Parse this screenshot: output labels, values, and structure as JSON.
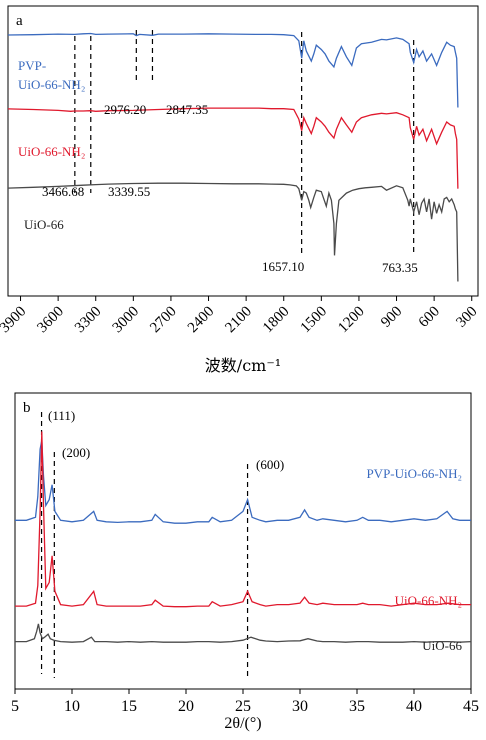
{
  "chart_data": [
    {
      "panel": "a",
      "type": "line",
      "xlabel": "波数/cm⁻¹",
      "x_reversed": true,
      "xlim": [
        4000,
        250
      ],
      "xticks": [
        3900,
        3600,
        3300,
        3000,
        2700,
        2400,
        2100,
        1800,
        1500,
        1200,
        900,
        600,
        300
      ],
      "xtick_labels": [
        "3900",
        "3600",
        "3300",
        "3000",
        "2700",
        "2400",
        "2100",
        "1800",
        "1500",
        "1200",
        "900",
        "600",
        "300"
      ],
      "series": [
        {
          "name": "PVP-\nUiO-66-NH₂",
          "color": "#3b6bbf",
          "x": [
            4000,
            3800,
            3600,
            3470,
            3400,
            3340,
            3300,
            3200,
            3000,
            2976,
            2950,
            2847,
            2800,
            2600,
            2400,
            2200,
            2000,
            1900,
            1800,
            1720,
            1680,
            1657,
            1640,
            1620,
            1580,
            1560,
            1540,
            1500,
            1470,
            1440,
            1400,
            1380,
            1340,
            1300,
            1257,
            1220,
            1180,
            1100,
            1020,
            980,
            900,
            850,
            800,
            790,
            763,
            740,
            720,
            690,
            660,
            620,
            580,
            540,
            500,
            470,
            440,
            430,
            420,
            410
          ],
          "y": [
            90.0,
            90.1,
            90.3,
            90.2,
            90.4,
            90.5,
            90.2,
            90.3,
            90.4,
            89.8,
            90.2,
            89.9,
            90.3,
            90.3,
            90.4,
            90.3,
            90.2,
            90.2,
            90.1,
            89.8,
            88.0,
            82.0,
            88.0,
            84.5,
            81.0,
            83.5,
            86.5,
            85.0,
            83.5,
            81.0,
            79.0,
            82.0,
            86.0,
            82.5,
            79.5,
            85.5,
            87.0,
            87.5,
            88.5,
            88.3,
            89.0,
            88.5,
            87.0,
            84.0,
            80.5,
            85.0,
            82.5,
            84.5,
            81.0,
            83.5,
            79.5,
            84.0,
            87.5,
            86.5,
            86.0,
            84.0,
            82.0,
            65.0
          ]
        },
        {
          "name": "UiO-66-NH₂",
          "color": "#e0192d",
          "x": [
            4000,
            3800,
            3600,
            3500,
            3470,
            3400,
            3340,
            3300,
            3200,
            3000,
            2800,
            2600,
            2400,
            2200,
            2000,
            1900,
            1800,
            1720,
            1680,
            1657,
            1640,
            1620,
            1580,
            1560,
            1540,
            1500,
            1470,
            1440,
            1400,
            1380,
            1340,
            1300,
            1257,
            1220,
            1180,
            1100,
            1020,
            980,
            900,
            850,
            800,
            790,
            763,
            740,
            720,
            690,
            660,
            620,
            580,
            540,
            500,
            470,
            440,
            430,
            420,
            410
          ],
          "y": [
            64.5,
            64.3,
            64.0,
            63.7,
            63.8,
            63.8,
            63.9,
            63.7,
            63.9,
            64.0,
            64.3,
            64.6,
            64.8,
            64.8,
            64.8,
            64.6,
            64.6,
            64.3,
            61.0,
            57.0,
            61.5,
            59.5,
            56.0,
            58.5,
            61.5,
            60.0,
            58.5,
            56.5,
            54.5,
            57.5,
            61.5,
            59.0,
            56.5,
            60.0,
            61.5,
            62.5,
            63.0,
            62.8,
            63.2,
            62.5,
            61.5,
            58.0,
            54.0,
            58.5,
            55.5,
            57.5,
            53.5,
            57.5,
            52.5,
            56.5,
            60.0,
            59.0,
            58.5,
            56.0,
            54.0,
            37.0
          ]
        },
        {
          "name": "UiO-66",
          "color": "#4a4a4a",
          "x": [
            4000,
            3800,
            3600,
            3500,
            3400,
            3300,
            3200,
            3000,
            2800,
            2600,
            2400,
            2200,
            2000,
            1900,
            1800,
            1750,
            1700,
            1680,
            1657,
            1640,
            1620,
            1600,
            1585,
            1560,
            1540,
            1500,
            1480,
            1460,
            1440,
            1420,
            1400,
            1395,
            1380,
            1360,
            1300,
            1250,
            1200,
            1150,
            1100,
            1020,
            980,
            900,
            850,
            810,
            800,
            790,
            763,
            740,
            720,
            700,
            680,
            660,
            640,
            620,
            600,
            580,
            560,
            540,
            520,
            500,
            480,
            460,
            440,
            430,
            420,
            410
          ],
          "y": [
            37.2,
            37.5,
            37.8,
            38.0,
            38.2,
            38.4,
            38.6,
            38.8,
            38.9,
            38.9,
            38.8,
            38.7,
            38.7,
            38.6,
            38.5,
            38.3,
            38.0,
            37.0,
            33.0,
            36.0,
            35.5,
            33.0,
            30.5,
            34.0,
            36.5,
            36.0,
            33.5,
            31.0,
            35.5,
            33.0,
            25.0,
            14.0,
            25.0,
            33.0,
            35.5,
            36.5,
            37.0,
            37.3,
            37.5,
            37.8,
            36.5,
            38.0,
            37.3,
            33.0,
            31.0,
            33.5,
            29.0,
            32.5,
            28.0,
            32.0,
            33.5,
            29.0,
            33.5,
            26.5,
            32.5,
            28.5,
            31.5,
            29.0,
            33.5,
            34.0,
            32.5,
            33.5,
            31.5,
            30.0,
            29.0,
            5.0
          ]
        }
      ],
      "reference_lines": [
        3466.68,
        3339.55,
        2976.2,
        2847.35,
        1657.1,
        763.35
      ],
      "annotations": [
        "3466.68",
        "3339.55",
        "2976.20",
        "2847.35",
        "1657.10",
        "763.35"
      ]
    },
    {
      "panel": "b",
      "type": "line",
      "xlabel": "2θ/(°)",
      "xlim": [
        5,
        45
      ],
      "xticks": [
        5,
        10,
        15,
        20,
        25,
        30,
        35,
        40,
        45
      ],
      "xtick_labels": [
        "5",
        "10",
        "15",
        "20",
        "25",
        "30",
        "35",
        "40",
        "45"
      ],
      "series": [
        {
          "name": "PVP-UiO-66-NH₂",
          "color": "#3b6bbf",
          "x": [
            5.0,
            6.0,
            6.8,
            7.0,
            7.2,
            7.35,
            7.5,
            7.7,
            8.0,
            8.25,
            8.5,
            9.0,
            10.0,
            11.0,
            11.9,
            12.2,
            13.0,
            14.0,
            15.0,
            16.0,
            17.0,
            17.3,
            18.0,
            19.0,
            20.0,
            21.0,
            22.0,
            22.3,
            23.0,
            24.0,
            25.0,
            25.4,
            25.8,
            26.5,
            27.0,
            28.0,
            29.0,
            30.0,
            30.4,
            30.8,
            31.5,
            32.0,
            33.0,
            34.0,
            35.0,
            35.5,
            36.0,
            37.0,
            38.0,
            39.0,
            40.0,
            41.0,
            42.0,
            42.9,
            43.4,
            44.0,
            45.0
          ],
          "y": [
            57,
            57,
            58,
            65,
            81,
            84,
            72,
            62,
            64,
            69,
            60,
            57,
            56.5,
            57,
            60,
            57,
            56.5,
            56.3,
            56.5,
            56.5,
            57,
            59,
            56.5,
            56,
            56,
            56.5,
            56.5,
            58,
            56.5,
            57,
            60,
            64,
            58,
            57,
            56.5,
            57,
            57,
            58,
            60.5,
            58,
            57,
            57.5,
            57,
            56.5,
            57,
            58,
            57,
            57,
            56.5,
            57,
            57.5,
            57,
            57.5,
            60,
            57.5,
            57,
            57
          ]
        },
        {
          "name": "UiO-66-NH₂",
          "color": "#e0192d",
          "x": [
            5.0,
            6.0,
            6.8,
            7.0,
            7.2,
            7.35,
            7.5,
            7.7,
            8.0,
            8.25,
            8.5,
            9.0,
            10.0,
            11.0,
            11.9,
            12.2,
            13.0,
            14.0,
            15.0,
            16.0,
            17.0,
            17.3,
            18.0,
            19.0,
            20.0,
            21.0,
            22.0,
            22.3,
            23.0,
            24.0,
            25.0,
            25.4,
            25.8,
            26.5,
            27.0,
            28.0,
            29.0,
            30.0,
            30.4,
            30.8,
            31.5,
            32.0,
            33.0,
            34.0,
            35.0,
            35.5,
            36.0,
            37.0,
            38.0,
            39.0,
            40.0,
            41.0,
            42.0,
            43.0,
            44.0,
            45.0
          ],
          "y": [
            28,
            28,
            29,
            35,
            60,
            87,
            62,
            34,
            36,
            45,
            33,
            28.5,
            28,
            28.5,
            33,
            28.5,
            28,
            28,
            28,
            28,
            28.5,
            30,
            28,
            27.8,
            27.8,
            28,
            28,
            29.5,
            28,
            28.5,
            29.5,
            33,
            29.5,
            28.5,
            28,
            28.5,
            28.5,
            29,
            31,
            29,
            28.5,
            29,
            28.5,
            28.5,
            28.5,
            29,
            28.5,
            28.5,
            28,
            28.5,
            29,
            28.5,
            28.5,
            29,
            28.5,
            28.5
          ]
        },
        {
          "name": "UiO-66",
          "color": "#4a4a4a",
          "x": [
            5.0,
            6.0,
            6.7,
            6.9,
            7.05,
            7.2,
            7.4,
            7.6,
            7.9,
            8.1,
            8.4,
            9.0,
            10.0,
            11.0,
            11.7,
            12.0,
            13.0,
            14.0,
            15.0,
            16.0,
            17.0,
            18.0,
            19.0,
            20.0,
            21.0,
            22.0,
            23.0,
            24.0,
            25.0,
            25.7,
            26.5,
            27.0,
            28.0,
            29.0,
            30.0,
            30.7,
            31.5,
            32.0,
            33.0,
            34.0,
            35.0,
            36.0,
            37.0,
            38.0,
            39.0,
            40.0,
            41.0,
            42.0,
            43.0,
            44.0,
            45.0
          ],
          "y": [
            16,
            16,
            17,
            19.5,
            22,
            19,
            17,
            17.5,
            18.5,
            17,
            16.5,
            16,
            15.8,
            16,
            17.5,
            16,
            16,
            15.8,
            16,
            15.8,
            16,
            15.8,
            15.8,
            15.8,
            16,
            16,
            15.8,
            16,
            16.5,
            17.5,
            16.5,
            16.2,
            16,
            16.2,
            16.3,
            17,
            16.2,
            16,
            16,
            15.8,
            16,
            16,
            15.8,
            15.8,
            15.8,
            16,
            15.8,
            16,
            16,
            15.8,
            16
          ]
        }
      ],
      "reference_lines": [
        7.33,
        8.45,
        25.4
      ],
      "annotations": [
        "(111)",
        "(200)",
        "(600)"
      ]
    }
  ],
  "figure": {
    "panel_a_label": "a",
    "panel_b_label": "b",
    "a_labels": {
      "pvp_line1": "PVP-",
      "pvp_line2": "UiO-66-NH₂",
      "nh2": "UiO-66-NH₂",
      "uio": "UiO-66"
    },
    "b_labels": {
      "pvp": "PVP-UiO-66-NH₂",
      "nh2": "UiO-66-NH₂",
      "uio": "UiO-66"
    }
  }
}
